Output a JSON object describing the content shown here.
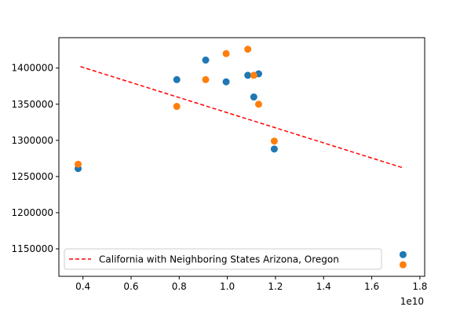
{
  "chart_data": {
    "type": "scatter",
    "title": "",
    "xlabel": "",
    "ylabel": "",
    "x_offset_label": "1e10",
    "xlim": [
      0.3,
      1.82
    ],
    "ylim": [
      1112000,
      1442000
    ],
    "x_ticks": [
      0.4,
      0.6,
      0.8,
      1.0,
      1.2,
      1.4,
      1.6,
      1.8
    ],
    "x_tick_labels": [
      "0.4",
      "0.6",
      "0.8",
      "1.0",
      "1.2",
      "1.4",
      "1.6",
      "1.8"
    ],
    "y_ticks": [
      1150000,
      1200000,
      1250000,
      1300000,
      1350000,
      1400000
    ],
    "y_tick_labels": [
      "1150000",
      "1200000",
      "1250000",
      "1300000",
      "1350000",
      "1400000"
    ],
    "grid": false,
    "legend_position": "lower-left",
    "series": [
      {
        "color": "#1f77b4",
        "points": [
          [
            0.38,
            1261000
          ],
          [
            0.79,
            1384000
          ],
          [
            0.91,
            1411000
          ],
          [
            0.995,
            1381000
          ],
          [
            1.085,
            1390000
          ],
          [
            1.11,
            1360000
          ],
          [
            1.13,
            1392000
          ],
          [
            1.195,
            1288000
          ],
          [
            1.73,
            1142000
          ]
        ]
      },
      {
        "color": "#ff7f0e",
        "points": [
          [
            0.38,
            1267000
          ],
          [
            0.79,
            1347000
          ],
          [
            0.91,
            1384000
          ],
          [
            0.995,
            1420000
          ],
          [
            1.085,
            1426000
          ],
          [
            1.11,
            1390000
          ],
          [
            1.13,
            1350000
          ],
          [
            1.195,
            1299000
          ],
          [
            1.73,
            1128000
          ]
        ]
      }
    ],
    "trend_line": {
      "name": "California with Neighboring States Arizona, Oregon",
      "color": "#ff0000",
      "style": "dashed",
      "x": [
        0.39,
        1.73
      ],
      "y": [
        1402000,
        1262000
      ]
    }
  }
}
